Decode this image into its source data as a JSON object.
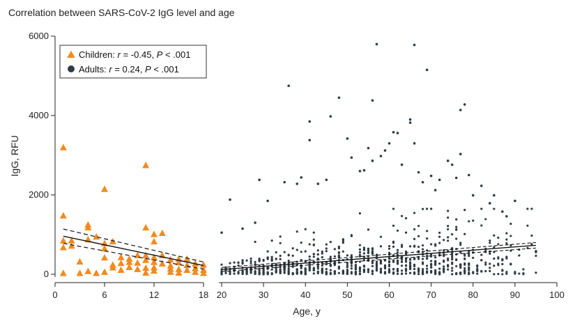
{
  "chart_data": {
    "type": "scatter",
    "title": "Correlation between SARS-CoV-2 IgG level and age",
    "xlabel": "Age, y",
    "ylabel": "IgG, RFU",
    "ylim": [
      0,
      6000
    ],
    "yticks": [
      0,
      2000,
      4000,
      6000
    ],
    "ytick_labels": [
      "0",
      "2000",
      "4000",
      "6000"
    ],
    "grid": false,
    "legend_position": "top-left",
    "x_axis_note": "broken axis: children panel 0-18 y, adults panel 20-100 y",
    "panels": [
      {
        "name": "children",
        "xlim": [
          0,
          18
        ],
        "xticks": [
          0,
          6,
          12,
          18
        ],
        "xtick_labels": [
          "0",
          "6",
          "12",
          "18"
        ]
      },
      {
        "name": "adults",
        "xlim": [
          18,
          100
        ],
        "xticks": [
          20,
          30,
          40,
          50,
          60,
          70,
          80,
          90,
          100
        ],
        "xtick_labels": [
          "20",
          "30",
          "40",
          "50",
          "60",
          "70",
          "80",
          "90",
          "100"
        ]
      }
    ],
    "series": [
      {
        "legend_label_name": "Children: ",
        "legend_label_r": "r",
        "legend_label_mid": " = -0.45, ",
        "legend_label_p": "P",
        "legend_label_end": " < .001",
        "marker": "triangle",
        "color": "#F28A1E",
        "points": [
          [
            1,
            3200
          ],
          [
            1,
            1480
          ],
          [
            1,
            850
          ],
          [
            1,
            680
          ],
          [
            1,
            30
          ],
          [
            2,
            850
          ],
          [
            2,
            720
          ],
          [
            3,
            320
          ],
          [
            3,
            30
          ],
          [
            4,
            1250
          ],
          [
            4,
            1180
          ],
          [
            4,
            880
          ],
          [
            4,
            80
          ],
          [
            5,
            950
          ],
          [
            5,
            30
          ],
          [
            6,
            2150
          ],
          [
            6,
            780
          ],
          [
            6,
            650
          ],
          [
            6,
            420
          ],
          [
            6,
            60
          ],
          [
            7,
            830
          ],
          [
            7,
            240
          ],
          [
            7,
            170
          ],
          [
            8,
            430
          ],
          [
            8,
            280
          ],
          [
            8,
            110
          ],
          [
            9,
            390
          ],
          [
            9,
            310
          ],
          [
            9,
            180
          ],
          [
            10,
            480
          ],
          [
            10,
            290
          ],
          [
            10,
            130
          ],
          [
            11,
            2750
          ],
          [
            11,
            1180
          ],
          [
            11,
            480
          ],
          [
            11,
            360
          ],
          [
            11,
            160
          ],
          [
            11,
            40
          ],
          [
            12,
            1010
          ],
          [
            12,
            830
          ],
          [
            12,
            430
          ],
          [
            12,
            310
          ],
          [
            12,
            170
          ],
          [
            12,
            90
          ],
          [
            13,
            1040
          ],
          [
            13,
            480
          ],
          [
            13,
            270
          ],
          [
            14,
            370
          ],
          [
            14,
            220
          ],
          [
            14,
            140
          ],
          [
            14,
            60
          ],
          [
            15,
            390
          ],
          [
            15,
            300
          ],
          [
            15,
            130
          ],
          [
            15,
            40
          ],
          [
            16,
            390
          ],
          [
            16,
            230
          ],
          [
            16,
            110
          ],
          [
            17,
            270
          ],
          [
            17,
            150
          ],
          [
            17,
            60
          ],
          [
            18,
            240
          ],
          [
            18,
            110
          ],
          [
            18,
            30
          ]
        ],
        "fit_line": {
          "x": [
            1,
            18
          ],
          "y": [
            960,
            220
          ]
        },
        "ci_upper": {
          "x": [
            1,
            18
          ],
          "y": [
            1140,
            310
          ]
        },
        "ci_lower": {
          "x": [
            1,
            18
          ],
          "y": [
            780,
            130
          ]
        }
      },
      {
        "legend_label_name": "Adults: ",
        "legend_label_r": "r",
        "legend_label_mid": " = 0.24, ",
        "legend_label_p": "P",
        "legend_label_end": " < .001",
        "marker": "circle",
        "color": "#2E3B42",
        "outliers": [
          [
            20,
            1050
          ],
          [
            22,
            1880
          ],
          [
            25,
            1150
          ],
          [
            28,
            1300
          ],
          [
            29,
            2380
          ],
          [
            31,
            1850
          ],
          [
            35,
            2320
          ],
          [
            36,
            4750
          ],
          [
            38,
            2280
          ],
          [
            39,
            2440
          ],
          [
            41,
            3850
          ],
          [
            41,
            3380
          ],
          [
            43,
            2280
          ],
          [
            45,
            2380
          ],
          [
            46,
            3980
          ],
          [
            48,
            4450
          ],
          [
            50,
            3420
          ],
          [
            51,
            2940
          ],
          [
            53,
            2600
          ],
          [
            54,
            2620
          ],
          [
            55,
            3180
          ],
          [
            56,
            4380
          ],
          [
            56,
            2860
          ],
          [
            57,
            5800
          ],
          [
            58,
            2980
          ],
          [
            59,
            3120
          ],
          [
            60,
            3300
          ],
          [
            61,
            3580
          ],
          [
            62,
            3560
          ],
          [
            63,
            2760
          ],
          [
            65,
            3900
          ],
          [
            65,
            3820
          ],
          [
            66,
            5780
          ],
          [
            66,
            3300
          ],
          [
            67,
            2570
          ],
          [
            68,
            2320
          ],
          [
            69,
            5150
          ],
          [
            70,
            2480
          ],
          [
            71,
            2120
          ],
          [
            72,
            2380
          ],
          [
            74,
            2860
          ],
          [
            75,
            2760
          ],
          [
            76,
            2430
          ],
          [
            77,
            4140
          ],
          [
            77,
            3030
          ],
          [
            78,
            4280
          ],
          [
            79,
            2500
          ],
          [
            80,
            1990
          ],
          [
            82,
            2230
          ],
          [
            84,
            1790
          ],
          [
            85,
            1990
          ],
          [
            87,
            1580
          ],
          [
            88,
            1460
          ],
          [
            90,
            1850
          ],
          [
            95,
            580
          ]
        ],
        "fit_line": {
          "x": [
            20,
            95
          ],
          "y": [
            120,
            730
          ]
        },
        "ci_upper": {
          "x": [
            20,
            95
          ],
          "y": [
            170,
            800
          ]
        },
        "ci_lower": {
          "x": [
            20,
            95
          ],
          "y": [
            70,
            660
          ]
        }
      }
    ]
  }
}
